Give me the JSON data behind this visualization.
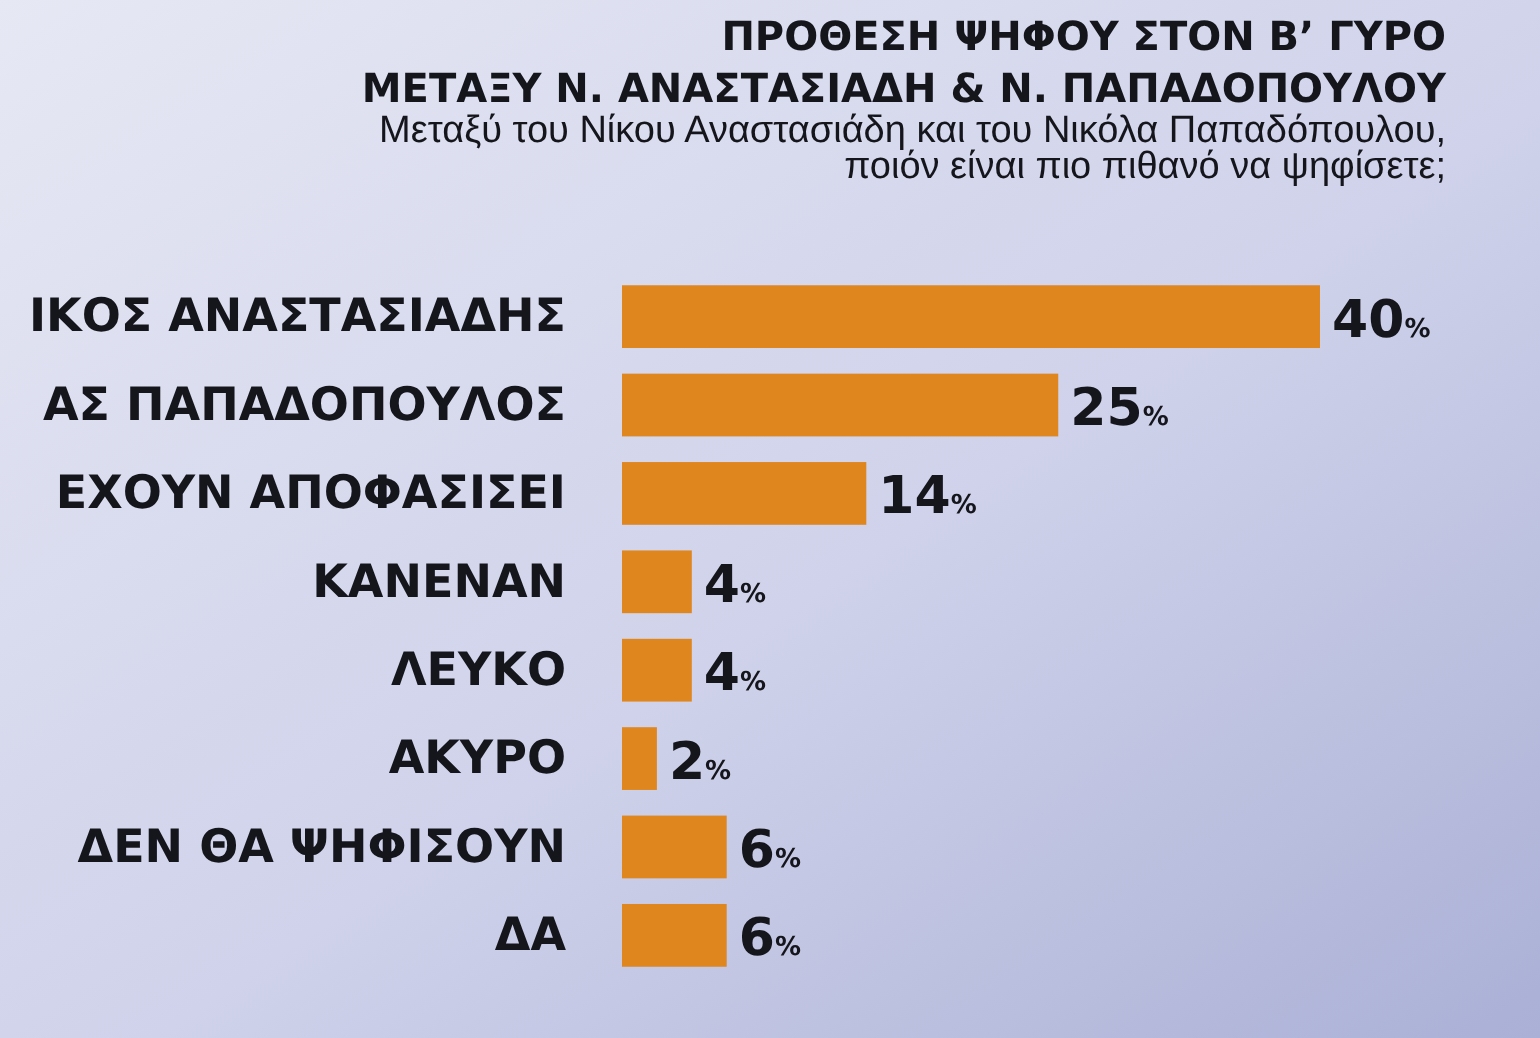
{
  "chart_data": {
    "type": "bar",
    "orientation": "horizontal",
    "title": "ΠΡΟΘΕΣΗ ΨΗΦΟΥ ΣΤΟΝ Β’ ΓΥΡΟ\nΜΕΤΑΞΥ Ν. ΑΝΑΣΤΑΣΙΑΔΗ & Ν. ΠΑΠΑΔΟΠΟΥΛΟΥ",
    "subtitle": "Μεταξύ του Νίκου Αναστασιάδη και του Νικόλα Παπαδόπουλου,\nποιόν είναι πιο πιθανό να ψηφίσετε;",
    "categories": [
      "ΙΚΟΣ ΑΝΑΣΤΑΣΙΑΔΗΣ",
      "ΑΣ ΠΑΠΑΔΟΠΟΥΛΟΣ",
      "ΕΧΟΥΝ ΑΠΟΦΑΣΙΣΕΙ",
      "ΚΑΝΕΝΑΝ",
      "ΛΕΥΚΟ",
      "ΑΚΥΡΟ",
      "ΔΕΝ ΘΑ ΨΗΦΙΣΟΥΝ",
      "ΔΑ"
    ],
    "values": [
      40,
      25,
      14,
      4,
      4,
      2,
      6,
      6
    ],
    "color": "#e0861f",
    "value_labels": [
      "40%",
      "25%",
      "14%",
      "4%",
      "4%",
      "2%",
      "6%",
      "6%"
    ]
  }
}
